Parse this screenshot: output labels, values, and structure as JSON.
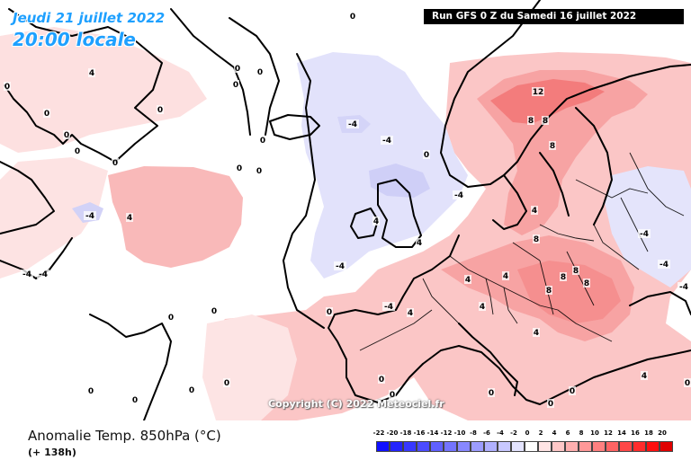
{
  "header": {
    "date": "Jeudi 21 juillet 2022",
    "local_time": "20:00 locale",
    "run_info": "Run GFS 0 Z du Samedi 16 juillet 2022"
  },
  "copyright": "Copyright (C) 2022 Meteociel.fr",
  "footer": {
    "variable_title": "Anomalie Temp. 850hPa (°C)",
    "lead_time": "(+ 138h)"
  },
  "legend": {
    "unit": "°C",
    "bins": [
      {
        "label": "-22",
        "color": "#1010ff"
      },
      {
        "label": "-20",
        "color": "#2424ff"
      },
      {
        "label": "-18",
        "color": "#3838ff"
      },
      {
        "label": "-16",
        "color": "#4c4cff"
      },
      {
        "label": "-14",
        "color": "#6060ff"
      },
      {
        "label": "-12",
        "color": "#7474ff"
      },
      {
        "label": "-10",
        "color": "#8888ff"
      },
      {
        "label": "-8",
        "color": "#9c9cff"
      },
      {
        "label": "-6",
        "color": "#b0b0ff"
      },
      {
        "label": "-4",
        "color": "#c8c8ff"
      },
      {
        "label": "-2",
        "color": "#e4e4ff"
      },
      {
        "label": "0",
        "color": "#ffffff"
      },
      {
        "label": "2",
        "color": "#ffe4e4"
      },
      {
        "label": "4",
        "color": "#ffc8c8"
      },
      {
        "label": "6",
        "color": "#ffb0b0"
      },
      {
        "label": "8",
        "color": "#ff9898"
      },
      {
        "label": "10",
        "color": "#ff8080"
      },
      {
        "label": "12",
        "color": "#ff6464"
      },
      {
        "label": "14",
        "color": "#ff4848"
      },
      {
        "label": "16",
        "color": "#ff2c2c"
      },
      {
        "label": "18",
        "color": "#ff1010"
      },
      {
        "label": "20",
        "color": "#e00000"
      }
    ]
  },
  "colors": {
    "date_text": "#1ea0ff",
    "warm_anomaly": "#f9b4b4",
    "strong_warm_anomaly": "#f58a8a",
    "cold_anomaly": "#dcdcfa",
    "coastline": "#000000"
  },
  "contour_labels": [
    {
      "text": "0",
      "t": "zero"
    },
    {
      "text": "0",
      "t": "zero"
    },
    {
      "text": "0",
      "t": "zero"
    },
    {
      "text": "0",
      "t": "zero"
    },
    {
      "text": "0",
      "t": "zero"
    },
    {
      "text": "0",
      "t": "zero"
    },
    {
      "text": "0",
      "t": "zero"
    },
    {
      "text": "0",
      "t": "zero"
    },
    {
      "text": "0",
      "t": "zero"
    },
    {
      "text": "0",
      "t": "zero"
    },
    {
      "text": "0",
      "t": "zero"
    },
    {
      "text": "0",
      "t": "zero"
    },
    {
      "text": "0",
      "t": "zero"
    },
    {
      "text": "0",
      "t": "zero"
    },
    {
      "text": "0",
      "t": "zero"
    },
    {
      "text": "0",
      "t": "zero"
    },
    {
      "text": "0",
      "t": "zero"
    },
    {
      "text": "0",
      "t": "zero"
    },
    {
      "text": "0",
      "t": "zero"
    },
    {
      "text": "0",
      "t": "zero"
    },
    {
      "text": "0",
      "t": "zero"
    },
    {
      "text": "0",
      "t": "zero"
    },
    {
      "text": "0",
      "t": "zero"
    },
    {
      "text": "0",
      "t": "zero"
    },
    {
      "text": "0",
      "t": "zero"
    },
    {
      "text": "0",
      "t": "zero"
    },
    {
      "text": "0",
      "t": "zero"
    },
    {
      "text": "4",
      "t": "pos"
    },
    {
      "text": "4",
      "t": "pos"
    },
    {
      "text": "4",
      "t": "pos"
    },
    {
      "text": "4",
      "t": "pos"
    },
    {
      "text": "4",
      "t": "pos"
    },
    {
      "text": "4",
      "t": "pos"
    },
    {
      "text": "4",
      "t": "pos"
    },
    {
      "text": "4",
      "t": "pos"
    },
    {
      "text": "4",
      "t": "pos"
    },
    {
      "text": "4",
      "t": "pos"
    },
    {
      "text": "4",
      "t": "pos"
    },
    {
      "text": "-4",
      "t": "neg"
    },
    {
      "text": "-4",
      "t": "neg"
    },
    {
      "text": "-4",
      "t": "neg"
    },
    {
      "text": "-4",
      "t": "neg"
    },
    {
      "text": "-4",
      "t": "neg"
    },
    {
      "text": "-4",
      "t": "neg"
    },
    {
      "text": "-4",
      "t": "neg"
    },
    {
      "text": "-4",
      "t": "neg"
    },
    {
      "text": "-4",
      "t": "neg"
    },
    {
      "text": "-4",
      "t": "neg"
    },
    {
      "text": "-4",
      "t": "neg"
    },
    {
      "text": "8",
      "t": "pos"
    },
    {
      "text": "8",
      "t": "pos"
    },
    {
      "text": "8",
      "t": "pos"
    },
    {
      "text": "8",
      "t": "pos"
    },
    {
      "text": "8",
      "t": "pos"
    },
    {
      "text": "8",
      "t": "pos"
    },
    {
      "text": "8",
      "t": "pos"
    },
    {
      "text": "8",
      "t": "pos"
    },
    {
      "text": "12",
      "t": "pos"
    }
  ]
}
